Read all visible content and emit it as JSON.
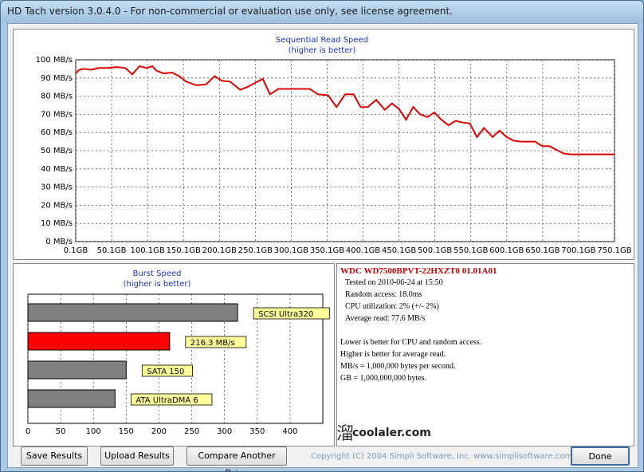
{
  "window": {
    "title": "HD Tach version 3.0.4.0  - For non-commercial or evaluation use only, see license agreement."
  },
  "seq_chart": {
    "title": "Sequential Read Speed",
    "subtitle": "(higher is better)",
    "y_ticks": [
      "0 MB/s",
      "10 MB/s",
      "20 MB/s",
      "30 MB/s",
      "40 MB/s",
      "50 MB/s",
      "60 MB/s",
      "70 MB/s",
      "80 MB/s",
      "90 MB/s",
      "100 MB/s"
    ],
    "x_ticks": [
      "0.1GB",
      "50.1GB",
      "100.1GB",
      "150.1GB",
      "200.1GB",
      "250.1GB",
      "300.1GB",
      "350.1GB",
      "400.1GB",
      "450.1GB",
      "500.1GB",
      "550.1GB",
      "600.1GB",
      "650.1GB",
      "700.1GB",
      "750.1GB"
    ],
    "line_color": "#dd0000"
  },
  "burst_chart": {
    "title": "Burst Speed",
    "subtitle": "(higher is better)",
    "x_ticks": [
      "0",
      "50",
      "100",
      "150",
      "200",
      "250",
      "300",
      "350",
      "400"
    ]
  },
  "chart_data": [
    {
      "type": "line",
      "title": "Sequential Read Speed",
      "subtitle": "(higher is better)",
      "xlabel": "",
      "ylabel": "",
      "xlim": [
        0.1,
        760
      ],
      "ylim": [
        0,
        100
      ],
      "grid": true,
      "x": [
        0.1,
        5,
        12,
        22,
        32,
        45,
        58,
        70,
        80,
        90,
        100,
        108,
        114,
        124,
        136,
        146,
        156,
        170,
        184,
        196,
        206,
        218,
        232,
        242,
        254,
        264,
        274,
        286,
        296,
        306,
        318,
        330,
        342,
        356,
        368,
        380,
        392,
        402,
        412,
        424,
        436,
        446,
        456,
        466,
        476,
        486,
        496,
        506,
        516,
        526,
        536,
        546,
        556,
        566,
        576,
        588,
        598,
        608,
        618,
        628,
        638,
        648,
        658,
        668,
        678,
        688,
        698,
        708,
        718,
        728,
        740,
        752,
        760
      ],
      "series": [
        {
          "values": [
            92.5,
            94.5,
            95,
            94.5,
            95.5,
            95.5,
            96,
            95.5,
            92,
            96.5,
            95.5,
            96.5,
            94,
            92.5,
            93,
            91,
            88,
            86,
            86.5,
            91,
            88.5,
            88,
            83.5,
            85,
            87.5,
            89.5,
            81,
            84,
            84,
            84,
            84,
            84,
            81,
            80.5,
            74,
            81,
            81,
            74,
            74,
            78,
            72.5,
            76,
            73,
            67,
            74,
            70,
            68.5,
            71,
            67,
            64,
            66.5,
            65.5,
            65,
            57.5,
            62.5,
            57.5,
            61,
            57.5,
            55.5,
            55,
            55,
            55,
            52.5,
            52.5,
            50.5,
            48.5,
            48,
            48,
            48,
            48,
            48,
            48,
            48
          ]
        }
      ]
    },
    {
      "type": "bar",
      "title": "Burst Speed",
      "subtitle": "(higher is better)",
      "xlim": [
        0,
        450
      ],
      "categories": [
        "SCSI Ultra320",
        "216.3 MB/s",
        "SATA 150",
        "ATA UltraDMA 6"
      ],
      "values": [
        320,
        216.3,
        150,
        133
      ],
      "colors": [
        "#808080",
        "#ff0000",
        "#808080",
        "#808080"
      ]
    }
  ],
  "info": {
    "drive": "WDC  WD7500BPVT-22HXZT0 01.01A01",
    "tested": "Tested on 2010-06-24 at 15:50",
    "random_access": "Random access: 18.0ms",
    "cpu": "CPU utilization: 2% (+/- 2%)",
    "avg_read": "Average read: 77.6 MB/s",
    "note1": "Lower is better for CPU and random access.",
    "note2": "Higher is better for average read.",
    "note3": "MB/s = 1,000,000 bytes per second.",
    "note4": "GB = 1,000,000,000 bytes.",
    "watermark": "coolaler.com"
  },
  "buttons": {
    "save": "Save Results",
    "upload": "Upload Results",
    "compare": "Compare Another Drive",
    "done": "Done"
  },
  "footer": {
    "copyright": "Copyright (C) 2004 Simpli Software, Inc. www.simplisoftware.com"
  }
}
